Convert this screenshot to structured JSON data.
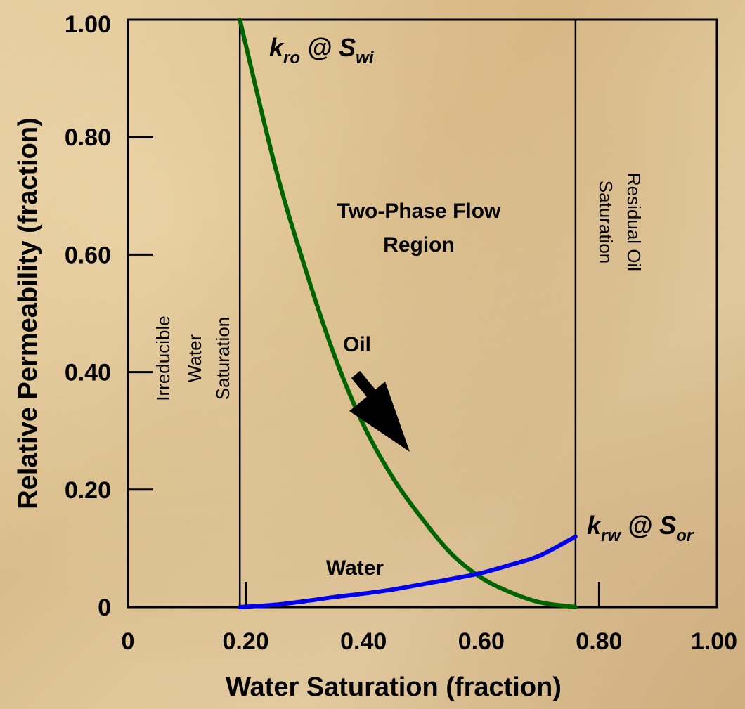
{
  "chart_data": {
    "type": "line",
    "xlabel": "Water Saturation (fraction)",
    "ylabel": "Relative Permeability (fraction)",
    "xlim": [
      0,
      1.0
    ],
    "ylim": [
      0,
      1.0
    ],
    "x_ticks": [
      "0",
      "0.20",
      "0.40",
      "0.60",
      "0.80",
      "1.00"
    ],
    "x_tick_values": [
      0,
      0.2,
      0.4,
      0.6,
      0.8,
      1.0
    ],
    "y_ticks": [
      "0",
      "0.20",
      "0.40",
      "0.60",
      "0.80",
      "1.00"
    ],
    "y_tick_values": [
      0,
      0.2,
      0.4,
      0.6,
      0.8,
      1.0
    ],
    "swi": 0.19,
    "sor_boundary": 0.76,
    "series": [
      {
        "name": "Oil",
        "color": "#006400",
        "x": [
          0.19,
          0.25,
          0.3,
          0.35,
          0.4,
          0.45,
          0.5,
          0.55,
          0.6,
          0.65,
          0.7,
          0.76
        ],
        "y": [
          1.0,
          0.75,
          0.58,
          0.43,
          0.31,
          0.22,
          0.15,
          0.09,
          0.05,
          0.025,
          0.008,
          0.0
        ]
      },
      {
        "name": "Water",
        "color": "#0000ee",
        "x": [
          0.19,
          0.25,
          0.3,
          0.35,
          0.4,
          0.45,
          0.5,
          0.55,
          0.6,
          0.65,
          0.7,
          0.76
        ],
        "y": [
          0.0,
          0.004,
          0.01,
          0.017,
          0.023,
          0.03,
          0.039,
          0.048,
          0.058,
          0.072,
          0.088,
          0.12
        ]
      }
    ],
    "annotations": {
      "kro_main": "k",
      "kro_sub": "ro",
      "kro_at": " @ S",
      "kro_sub2": "wi",
      "krw_main": "k",
      "krw_sub": "rw",
      "krw_at": " @ S",
      "krw_sub2": "or",
      "two_phase_line1": "Two-Phase Flow",
      "two_phase_line2": "Region",
      "irreducible_line1": "Irreducible",
      "irreducible_line2": "Water",
      "irreducible_line3": "Saturation",
      "residual_line1": "Residual Oil",
      "residual_line2": "Saturation",
      "oil_label": "Oil",
      "water_label": "Water"
    }
  }
}
